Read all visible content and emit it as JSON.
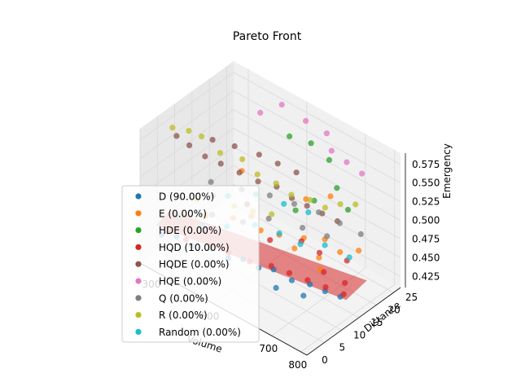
{
  "chart_data": {
    "type": "scatter",
    "projection": "3d",
    "title": "Pareto Front",
    "xlabel": "Volume",
    "ylabel": "Distance",
    "zlabel": "Emergency",
    "xlim": [
      250,
      820
    ],
    "ylim": [
      0,
      27
    ],
    "zlim": [
      0.41,
      0.59
    ],
    "xticks": [
      300,
      500,
      700,
      800
    ],
    "yticks": [
      0,
      5,
      10,
      15,
      20,
      25
    ],
    "zticks": [
      0.425,
      0.45,
      0.475,
      0.5,
      0.525,
      0.55,
      0.575
    ],
    "xtick_labels": [
      "300",
      "500",
      "700",
      "800"
    ],
    "ytick_labels": [
      "0",
      "5",
      "10",
      "15",
      "20",
      "25"
    ],
    "ztick_labels": [
      "0.425",
      "0.450",
      "0.475",
      "0.500",
      "0.525",
      "0.550",
      "0.575"
    ],
    "grid": true,
    "legend_position": "lower-left",
    "surface": {
      "color": "#d62728",
      "opacity": 0.55
    },
    "series": [
      {
        "name": "D (90.00%)",
        "color": "#1f77b4",
        "points": [
          [
            300,
            2,
            0.452
          ],
          [
            340,
            3,
            0.455
          ],
          [
            380,
            4,
            0.448
          ],
          [
            430,
            5,
            0.452
          ],
          [
            480,
            6,
            0.446
          ],
          [
            520,
            7,
            0.45
          ],
          [
            560,
            8,
            0.444
          ],
          [
            600,
            9,
            0.447
          ],
          [
            650,
            10,
            0.44
          ],
          [
            700,
            11,
            0.442
          ],
          [
            740,
            12,
            0.438
          ],
          [
            780,
            13,
            0.436
          ],
          [
            620,
            8,
            0.43
          ],
          [
            690,
            10,
            0.428
          ]
        ]
      },
      {
        "name": "E (0.00%)",
        "color": "#ff7f0e",
        "points": [
          [
            320,
            6,
            0.47
          ],
          [
            380,
            8,
            0.475
          ],
          [
            450,
            10,
            0.48
          ],
          [
            520,
            12,
            0.472
          ],
          [
            560,
            14,
            0.468
          ],
          [
            620,
            16,
            0.47
          ],
          [
            680,
            17,
            0.478
          ],
          [
            720,
            18,
            0.466
          ],
          [
            760,
            20,
            0.47
          ],
          [
            600,
            15,
            0.455
          ],
          [
            660,
            17,
            0.449
          ],
          [
            700,
            14,
            0.452
          ],
          [
            500,
            11,
            0.49
          ],
          [
            580,
            20,
            0.5
          ],
          [
            640,
            22,
            0.51
          ],
          [
            420,
            15,
            0.52
          ]
        ]
      },
      {
        "name": "HDE (0.00%)",
        "color": "#2ca02c",
        "points": [
          [
            500,
            22,
            0.56
          ],
          [
            550,
            24,
            0.555
          ],
          [
            600,
            25,
            0.54
          ],
          [
            650,
            23,
            0.52
          ],
          [
            700,
            22,
            0.505
          ],
          [
            620,
            19,
            0.51
          ],
          [
            580,
            17,
            0.495
          ]
        ]
      },
      {
        "name": "HQD (10.00%)",
        "color": "#d62728",
        "points": [
          [
            310,
            3,
            0.455
          ],
          [
            360,
            4,
            0.452
          ],
          [
            420,
            6,
            0.45
          ],
          [
            470,
            7,
            0.448
          ],
          [
            530,
            8,
            0.446
          ],
          [
            580,
            10,
            0.444
          ],
          [
            630,
            11,
            0.442
          ],
          [
            680,
            12,
            0.44
          ],
          [
            730,
            13,
            0.438
          ],
          [
            780,
            14,
            0.436
          ],
          [
            760,
            16,
            0.44
          ],
          [
            700,
            15,
            0.445
          ],
          [
            650,
            18,
            0.45
          ],
          [
            720,
            20,
            0.448
          ],
          [
            600,
            17,
            0.458
          ],
          [
            540,
            13,
            0.46
          ]
        ]
      },
      {
        "name": "HQDE (0.00%)",
        "color": "#8c564b",
        "points": [
          [
            280,
            8,
            0.56
          ],
          [
            300,
            10,
            0.545
          ],
          [
            330,
            12,
            0.53
          ],
          [
            360,
            14,
            0.52
          ],
          [
            400,
            16,
            0.51
          ],
          [
            440,
            18,
            0.5
          ],
          [
            480,
            20,
            0.495
          ],
          [
            520,
            21,
            0.485
          ],
          [
            560,
            22,
            0.48
          ],
          [
            600,
            23,
            0.475
          ],
          [
            640,
            24,
            0.47
          ],
          [
            320,
            15,
            0.54
          ],
          [
            360,
            18,
            0.53
          ],
          [
            420,
            20,
            0.525
          ],
          [
            460,
            22,
            0.515
          ],
          [
            500,
            24,
            0.505
          ],
          [
            380,
            10,
            0.495
          ],
          [
            450,
            14,
            0.485
          ]
        ]
      },
      {
        "name": "HQE (0.00%)",
        "color": "#e377c2",
        "points": [
          [
            450,
            24,
            0.585
          ],
          [
            520,
            25,
            0.575
          ],
          [
            580,
            26,
            0.568
          ],
          [
            620,
            24,
            0.56
          ],
          [
            400,
            22,
            0.57
          ],
          [
            660,
            25,
            0.55
          ],
          [
            700,
            26,
            0.54
          ]
        ]
      },
      {
        "name": "Q (0.00%)",
        "color": "#7f7f7f",
        "points": [
          [
            350,
            12,
            0.5
          ],
          [
            420,
            15,
            0.495
          ],
          [
            480,
            18,
            0.49
          ],
          [
            540,
            20,
            0.485
          ],
          [
            600,
            22,
            0.48
          ],
          [
            660,
            23,
            0.475
          ],
          [
            720,
            24,
            0.47
          ],
          [
            500,
            16,
            0.47
          ],
          [
            580,
            19,
            0.465
          ],
          [
            640,
            21,
            0.46
          ],
          [
            390,
            9,
            0.475
          ],
          [
            460,
            12,
            0.47
          ]
        ]
      },
      {
        "name": "R (0.00%)",
        "color": "#bcbd22",
        "points": [
          [
            290,
            6,
            0.58
          ],
          [
            310,
            9,
            0.57
          ],
          [
            330,
            11,
            0.56
          ],
          [
            370,
            13,
            0.54
          ],
          [
            410,
            16,
            0.53
          ],
          [
            450,
            17,
            0.515
          ],
          [
            490,
            19,
            0.505
          ],
          [
            530,
            20,
            0.495
          ],
          [
            570,
            22,
            0.49
          ],
          [
            610,
            23,
            0.485
          ],
          [
            650,
            24,
            0.495
          ],
          [
            690,
            25,
            0.5
          ],
          [
            430,
            12,
            0.485
          ],
          [
            470,
            14,
            0.48
          ],
          [
            510,
            16,
            0.478
          ],
          [
            350,
            8,
            0.49
          ]
        ]
      },
      {
        "name": "Random (0.00%)",
        "color": "#17becf",
        "points": [
          [
            320,
            5,
            0.47
          ],
          [
            380,
            7,
            0.465
          ],
          [
            440,
            9,
            0.47
          ],
          [
            500,
            12,
            0.475
          ],
          [
            560,
            14,
            0.47
          ],
          [
            620,
            15,
            0.465
          ],
          [
            680,
            17,
            0.47
          ],
          [
            740,
            19,
            0.46
          ],
          [
            420,
            11,
            0.5
          ],
          [
            480,
            14,
            0.505
          ],
          [
            540,
            17,
            0.495
          ],
          [
            600,
            19,
            0.49
          ]
        ]
      }
    ]
  }
}
